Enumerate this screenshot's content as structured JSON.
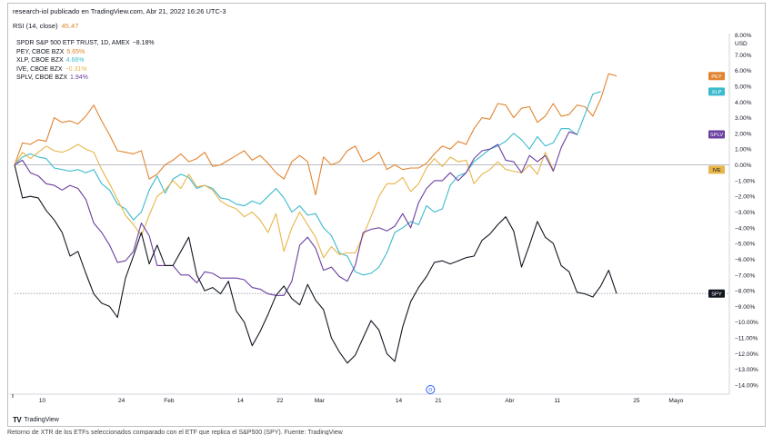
{
  "header": {
    "publisher_line": "research-iol publicado en TradingView.com, Abr 21, 2022 16:26 UTC-3",
    "rsi_label": "RSI (14, close)",
    "rsi_value": "45.47"
  },
  "legend": [
    {
      "label": "SPDR S&P 500 ETF TRUST, 1D, AMEX",
      "value": "−8.18%",
      "color": "#131722"
    },
    {
      "label": "PEY, CBOE BZX",
      "value": "5.65%",
      "color": "#e2842f"
    },
    {
      "label": "XLP, CBOE BZX",
      "value": "4.66%",
      "color": "#3cbacd"
    },
    {
      "label": "IVE, CBOE BZX",
      "value": "−0.31%",
      "color": "#e8b54a"
    },
    {
      "label": "SPLV, CBOE BZX",
      "value": "1.94%",
      "color": "#6b3fa0"
    }
  ],
  "footer": {
    "brand": "TradingView",
    "caption": "Retorno de XTR de los ETFs seleccionados comparado con el ETF que replica el S&P500 (SPY). Fuente: TradingView"
  },
  "chart_data": {
    "type": "line",
    "ylabel": "",
    "xlabel": "",
    "y_unit_label": "USD",
    "y_range": [
      -14.5,
      8.2
    ],
    "y_ticks": [
      8.0,
      7.0,
      6.0,
      5.0,
      4.0,
      3.0,
      2.0,
      1.0,
      0.0,
      -1.0,
      -2.0,
      -3.0,
      -4.0,
      -5.0,
      -6.0,
      -7.0,
      -8.0,
      -9.0,
      -10.0,
      -11.0,
      -12.0,
      -13.0,
      -14.0
    ],
    "y_tick_labels": [
      "8.00%",
      "7.00%",
      "6.00%",
      "5.00%",
      "4.00%",
      "3.00%",
      "2.00%",
      "1.00%",
      "0.00%",
      "−1.00%",
      "−2.00%",
      "−3.00%",
      "−4.00%",
      "−5.00%",
      "−6.00%",
      "−7.00%",
      "−8.00%",
      "−9.00%",
      "−10.00%",
      "−11.00%",
      "−12.00%",
      "−13.00%",
      "−14.00%"
    ],
    "x_ticks": [
      {
        "label": "10",
        "i": 3.5
      },
      {
        "label": "24",
        "i": 13.5
      },
      {
        "label": "Feb",
        "i": 19.5
      },
      {
        "label": "14",
        "i": 28.5
      },
      {
        "label": "22",
        "i": 33.5
      },
      {
        "label": "Mar",
        "i": 38.5
      },
      {
        "label": "14",
        "i": 48.5
      },
      {
        "label": "21",
        "i": 53.5
      },
      {
        "label": "Abr",
        "i": 62.5
      },
      {
        "label": "11",
        "i": 68.5
      },
      {
        "label": "25",
        "i": 78.5
      },
      {
        "label": "Mayo",
        "i": 83.5
      }
    ],
    "x_count": 90,
    "event_marker": {
      "label": "D",
      "i": 52.5
    },
    "reference_line": -8.18,
    "series": [
      {
        "name": "PEY",
        "color": "#e2842f",
        "last_label": "PEY",
        "values": [
          0.0,
          1.4,
          1.3,
          1.6,
          1.5,
          3.0,
          2.7,
          2.8,
          2.6,
          3.1,
          3.8,
          2.8,
          1.9,
          0.9,
          0.8,
          0.7,
          0.9,
          -0.9,
          -0.6,
          0.0,
          0.3,
          0.7,
          0.2,
          0.4,
          0.8,
          -0.1,
          0.0,
          0.3,
          0.6,
          0.9,
          0.3,
          0.6,
          0.1,
          -0.5,
          -0.9,
          0.2,
          0.6,
          0.2,
          -1.9,
          0.5,
          0.0,
          0.2,
          0.9,
          1.2,
          0.2,
          0.4,
          0.8,
          -0.3,
          0.0,
          -0.3,
          -0.2,
          -0.2,
          0.1,
          0.7,
          1.2,
          1.0,
          1.5,
          1.3,
          2.3,
          3.0,
          2.9,
          3.9,
          3.8,
          3.0,
          3.6,
          3.7,
          2.7,
          3.1,
          3.9,
          3.1,
          3.2,
          3.8,
          3.7,
          3.1,
          4.2,
          5.8,
          5.65
        ]
      },
      {
        "name": "XLP",
        "color": "#3cbacd",
        "last_label": "XLP",
        "values": [
          0.0,
          0.5,
          0.7,
          0.5,
          0.4,
          -0.2,
          -0.3,
          -0.4,
          -0.3,
          -0.5,
          -0.3,
          -1.2,
          -1.6,
          -2.5,
          -2.8,
          -3.5,
          -3.0,
          -1.6,
          -0.7,
          -1.8,
          -0.9,
          -0.6,
          -0.8,
          -1.5,
          -1.3,
          -1.5,
          -2.1,
          -2.2,
          -2.5,
          -2.6,
          -2.3,
          -2.5,
          -2.0,
          -1.5,
          -2.1,
          -3.0,
          -2.6,
          -3.2,
          -3.1,
          -4.0,
          -4.5,
          -5.6,
          -5.8,
          -6.8,
          -7.0,
          -6.9,
          -6.5,
          -5.6,
          -4.3,
          -4.0,
          -3.6,
          -3.8,
          -2.6,
          -3.0,
          -2.8,
          -1.3,
          -0.7,
          -0.5,
          0.2,
          0.6,
          1.0,
          1.2,
          1.5,
          2.0,
          1.6,
          1.0,
          1.8,
          1.2,
          1.4,
          2.3,
          2.3,
          1.9,
          3.2,
          4.5,
          4.66
        ]
      },
      {
        "name": "IVE",
        "color": "#e8b54a",
        "last_label": "IVE",
        "values": [
          0.0,
          0.8,
          0.4,
          0.8,
          1.2,
          0.9,
          0.8,
          1.0,
          1.3,
          1.0,
          0.8,
          -0.3,
          -1.2,
          -2.2,
          -3.2,
          -3.8,
          -4.5,
          -3.2,
          -2.0,
          -1.6,
          -1.0,
          -1.5,
          -0.6,
          -1.4,
          -1.3,
          -1.6,
          -2.3,
          -2.6,
          -2.8,
          -3.3,
          -3.0,
          -3.5,
          -4.3,
          -3.1,
          -5.5,
          -4.0,
          -3.0,
          -3.8,
          -4.6,
          -5.9,
          -5.2,
          -5.7,
          -5.6,
          -5.6,
          -4.5,
          -3.3,
          -2.0,
          -1.2,
          -1.2,
          -0.8,
          -1.7,
          -1.2,
          -0.2,
          0.4,
          -0.1,
          0.5,
          0.2,
          0.3,
          -1.2,
          -0.6,
          -0.3,
          0.2,
          -0.3,
          -0.4,
          -0.5,
          0.0,
          -0.6,
          0.8,
          -0.31
        ]
      },
      {
        "name": "SPLV",
        "color": "#6b3fa0",
        "last_label": "SPLV",
        "values": [
          0.0,
          0.3,
          -0.5,
          -0.7,
          -1.2,
          -1.3,
          -1.6,
          -1.3,
          -1.5,
          -2.2,
          -3.7,
          -4.3,
          -5.1,
          -6.2,
          -6.1,
          -5.5,
          -3.7,
          -4.5,
          -6.4,
          -6.4,
          -6.4,
          -7.0,
          -7.0,
          -7.5,
          -6.8,
          -6.9,
          -7.2,
          -7.2,
          -7.2,
          -7.3,
          -7.8,
          -7.9,
          -8.2,
          -8.3,
          -8.3,
          -7.4,
          -5.1,
          -4.6,
          -5.3,
          -6.7,
          -6.5,
          -7.1,
          -7.4,
          -6.4,
          -4.3,
          -4.1,
          -4.0,
          -4.2,
          -3.9,
          -3.1,
          -4.0,
          -2.4,
          -1.5,
          -1.0,
          -1.0,
          -0.5,
          -1.0,
          -0.5,
          0.4,
          0.9,
          1.0,
          1.3,
          0.3,
          0.2,
          -0.5,
          0.6,
          0.2,
          0.6,
          -0.4,
          1.1,
          2.1,
          1.94
        ]
      },
      {
        "name": "SPY",
        "color": "#131722",
        "last_label": "SPY",
        "values": [
          0.0,
          -2.1,
          -2.0,
          -2.1,
          -2.9,
          -3.5,
          -4.3,
          -5.8,
          -5.5,
          -6.9,
          -8.2,
          -8.8,
          -9.0,
          -9.7,
          -7.2,
          -5.8,
          -4.3,
          -6.3,
          -5.1,
          -6.4,
          -6.4,
          -5.5,
          -4.6,
          -7.0,
          -8.0,
          -7.8,
          -8.2,
          -7.4,
          -9.3,
          -10.0,
          -11.5,
          -10.6,
          -9.5,
          -8.3,
          -7.7,
          -8.5,
          -8.9,
          -7.6,
          -8.6,
          -9.2,
          -11.0,
          -11.9,
          -12.6,
          -12.1,
          -11.0,
          -9.9,
          -10.5,
          -12.0,
          -12.5,
          -10.3,
          -8.7,
          -7.8,
          -7.1,
          -6.2,
          -6.1,
          -6.3,
          -6.1,
          -5.9,
          -5.8,
          -4.8,
          -4.4,
          -3.8,
          -3.3,
          -4.2,
          -6.5,
          -5.1,
          -3.6,
          -4.6,
          -5.0,
          -6.4,
          -6.8,
          -8.1,
          -8.2,
          -8.4,
          -7.7,
          -6.7,
          -8.18
        ]
      }
    ]
  }
}
